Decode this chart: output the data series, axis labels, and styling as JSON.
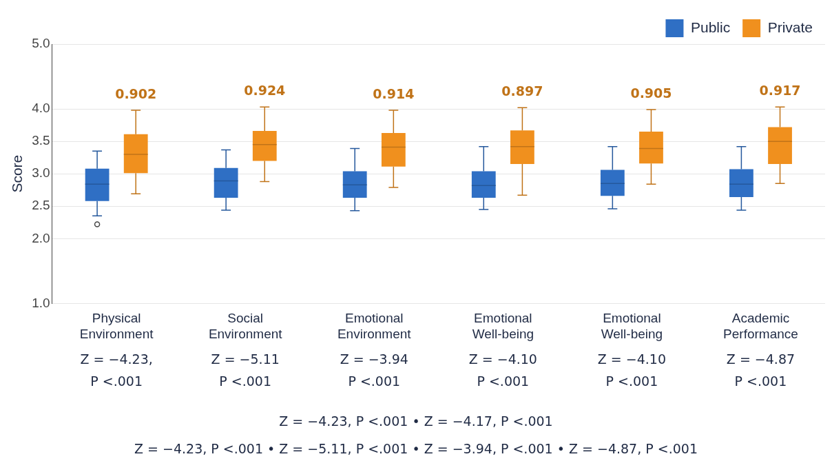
{
  "chart_data": {
    "type": "box",
    "ylabel": "Score",
    "categories": [
      "Physical Environment",
      "Social Environment",
      "Emotional Environment",
      "Emotional Well-being",
      "Emotional Well-being",
      "Academic Performance"
    ],
    "series": [
      {
        "name": "Public",
        "color": "#2f6fc4",
        "boxes": [
          {
            "low": 2.35,
            "q1": 2.58,
            "median": 2.84,
            "q3": 3.08,
            "high": 3.35,
            "outliers": [
              2.22
            ]
          },
          {
            "low": 2.44,
            "q1": 2.63,
            "median": 2.89,
            "q3": 3.09,
            "high": 3.37
          },
          {
            "low": 2.43,
            "q1": 2.63,
            "median": 2.83,
            "q3": 3.04,
            "high": 3.39
          },
          {
            "low": 2.45,
            "q1": 2.63,
            "median": 2.82,
            "q3": 3.04,
            "high": 3.42
          },
          {
            "low": 2.46,
            "q1": 2.66,
            "median": 2.85,
            "q3": 3.06,
            "high": 3.42
          },
          {
            "low": 2.44,
            "q1": 2.64,
            "median": 2.84,
            "q3": 3.07,
            "high": 3.42
          }
        ]
      },
      {
        "name": "Private",
        "color": "#f0901e",
        "boxes": [
          {
            "low": 2.69,
            "q1": 3.01,
            "median": 3.3,
            "q3": 3.61,
            "high": 3.98
          },
          {
            "low": 2.88,
            "q1": 3.2,
            "median": 3.45,
            "q3": 3.66,
            "high": 4.03
          },
          {
            "low": 2.79,
            "q1": 3.11,
            "median": 3.41,
            "q3": 3.63,
            "high": 3.98
          },
          {
            "low": 2.67,
            "q1": 3.15,
            "median": 3.42,
            "q3": 3.67,
            "high": 4.02
          },
          {
            "low": 2.84,
            "q1": 3.16,
            "median": 3.39,
            "q3": 3.65,
            "high": 3.99
          },
          {
            "low": 2.85,
            "q1": 3.15,
            "median": 3.5,
            "q3": 3.72,
            "high": 4.03
          }
        ]
      }
    ],
    "ylim": [
      1.0,
      5.0
    ],
    "yticks": [
      {
        "value": 1,
        "label": "1.0"
      },
      {
        "value": 2,
        "label": "2.0"
      },
      {
        "value": 2.5,
        "label": "2.5"
      },
      {
        "value": 3,
        "label": "3.0"
      },
      {
        "value": 3.5,
        "label": "3.5"
      },
      {
        "value": 4,
        "label": "4.0"
      },
      {
        "value": 5,
        "label": "5.0"
      }
    ],
    "grid": "y",
    "legend": "top right",
    "annotations": [
      "0.902",
      "0.924",
      "0.914",
      "0.897",
      "0.905",
      "0.917",
      "Z = −4.23, P <.001",
      "Z = −5.11 P <.001",
      "Z = −3.94 P <.001",
      "Z = −4.10 P <.001",
      "Z = −4.10 P <.001",
      "Z = −4.87 P <.001",
      "Z = −4.23, P <.001 • Z = −4.17, P <.001",
      "Z = −4.23, P <.001 • Z = −5.11, P <.001 • Z = −3.94, P <.001 • Z = −4.87, P <.001"
    ]
  }
}
